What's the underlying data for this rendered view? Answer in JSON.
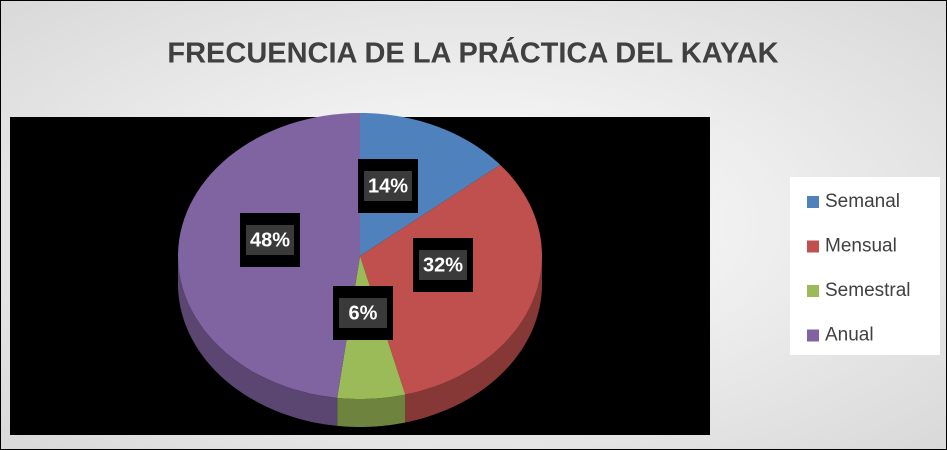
{
  "chart_data": {
    "type": "pie",
    "title": "FRECUENCIA DE LA PRÁCTICA DEL KAYAK",
    "categories": [
      "Semanal",
      "Mensual",
      "Semestral",
      "Anual"
    ],
    "values": [
      14,
      32,
      6,
      48
    ],
    "value_labels": [
      "14%",
      "32%",
      "6%",
      "48%"
    ],
    "colors": [
      "#4f81bd",
      "#c0504d",
      "#9bbb59",
      "#8064a2"
    ],
    "legend": "right"
  }
}
